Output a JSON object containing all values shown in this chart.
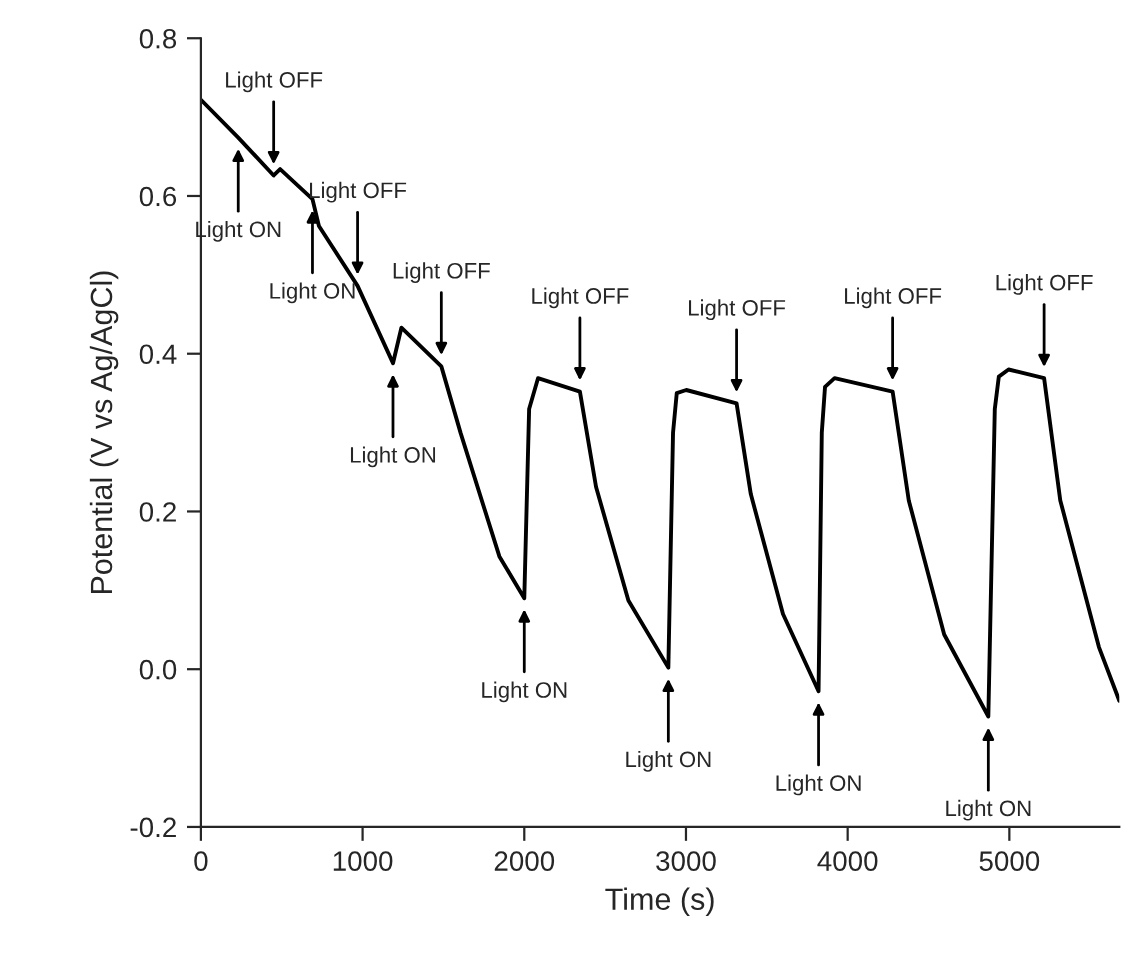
{
  "chart_data": {
    "type": "line",
    "xlabel": "Time (s)",
    "ylabel": "Potential (V vs Ag/AgCl)",
    "xlim": [
      0,
      5680
    ],
    "ylim": [
      -0.2,
      0.8
    ],
    "xticks": [
      0,
      1000,
      2000,
      3000,
      4000,
      5000
    ],
    "yticks": [
      {
        "value": -0.2,
        "label": "-0.2"
      },
      {
        "value": 0,
        "label": "0.0"
      },
      {
        "value": 0.2,
        "label": "0.2"
      },
      {
        "value": 0.4,
        "label": "0.4"
      },
      {
        "value": 0.6,
        "label": "0.6"
      },
      {
        "value": 0.8,
        "label": "0.8"
      }
    ],
    "grid": false,
    "marker": "none",
    "line_style": "solid",
    "series": [
      {
        "color": "#000000",
        "x": [
          0,
          231,
          450,
          490,
          690,
          730,
          969,
          1188,
          1240,
          1487,
          1607,
          1846,
          2000,
          2030,
          2085,
          2344,
          2444,
          2644,
          2891,
          2920,
          2943,
          3002,
          3313,
          3401,
          3600,
          3820,
          3840,
          3860,
          3919,
          4278,
          4378,
          4597,
          4870,
          4910,
          4935,
          4995,
          5215,
          5315,
          5554,
          5680
        ],
        "values": [
          0.722,
          0.674,
          0.626,
          0.634,
          0.596,
          0.562,
          0.486,
          0.388,
          0.433,
          0.384,
          0.299,
          0.143,
          0.09,
          0.33,
          0.369,
          0.352,
          0.231,
          0.087,
          0.002,
          0.3,
          0.35,
          0.354,
          0.337,
          0.222,
          0.07,
          -0.028,
          0.3,
          0.358,
          0.369,
          0.352,
          0.214,
          0.044,
          -0.06,
          0.33,
          0.371,
          0.38,
          0.369,
          0.214,
          0.028,
          -0.04
        ]
      }
    ],
    "annotations": [
      {
        "text": "Light ON",
        "x": 231,
        "y": 0.674
      },
      {
        "text": "Light OFF",
        "x": 450,
        "y": 0.626
      },
      {
        "text": "Light ON",
        "x": 690,
        "y": 0.596
      },
      {
        "text": "Light OFF",
        "x": 969,
        "y": 0.486
      },
      {
        "text": "Light ON",
        "x": 1188,
        "y": 0.388
      },
      {
        "text": "Light OFF",
        "x": 1487,
        "y": 0.384
      },
      {
        "text": "Light ON",
        "x": 2000,
        "y": 0.09
      },
      {
        "text": "Light OFF",
        "x": 2344,
        "y": 0.352
      },
      {
        "text": "Light ON",
        "x": 2891,
        "y": 0.002
      },
      {
        "text": "Light OFF",
        "x": 3313,
        "y": 0.337
      },
      {
        "text": "Light ON",
        "x": 3820,
        "y": -0.028
      },
      {
        "text": "Light OFF",
        "x": 4278,
        "y": 0.352
      },
      {
        "text": "Light ON",
        "x": 4870,
        "y": -0.06
      },
      {
        "text": "Light OFF",
        "x": 5215,
        "y": 0.369
      }
    ]
  }
}
